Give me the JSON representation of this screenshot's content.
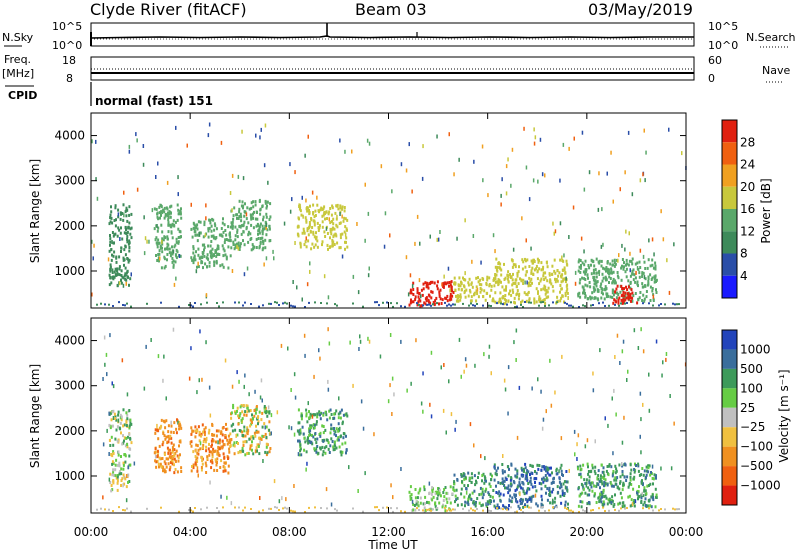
{
  "header": {
    "station": "Clyde River (fitACF)",
    "beam": "Beam 03",
    "date": "03/May/2019"
  },
  "strips": {
    "nsky_label": "N.Sky",
    "nsky_ticks": [
      "10^5",
      "10^0"
    ],
    "nsearch_label": "N.Search",
    "nsearch_ticks": [
      "10^5",
      "10^0"
    ],
    "freq_label_1": "Freq.",
    "freq_label_2": "[MHz]",
    "freq_ticks": [
      "18",
      "8"
    ],
    "nave_label": "Nave",
    "nave_ticks": [
      "60",
      "0"
    ],
    "cpid_label": "CPID",
    "cpid_value": "normal (fast) 151"
  },
  "chart_data": [
    {
      "type": "heatmap",
      "name": "power-panel",
      "ylabel": "Slant Range [km]",
      "xlabel": "Time UT",
      "ylim": [
        180,
        4500
      ],
      "yticks": [
        "1000",
        "2000",
        "3000",
        "4000"
      ],
      "ytick_values": [
        1000,
        2000,
        3000,
        4000
      ],
      "xlim": [
        0,
        24
      ],
      "colorbar": {
        "label": "Power [dB]",
        "tick_labels": [
          "4",
          "8",
          "12",
          "16",
          "20",
          "24",
          "28"
        ],
        "tick_values": [
          4,
          8,
          12,
          16,
          20,
          24,
          28
        ],
        "range": [
          0,
          32
        ],
        "colors": [
          "#1a1aff",
          "#2a4ea8",
          "#3d8a5a",
          "#5aa86a",
          "#c8c83c",
          "#f0a020",
          "#f06010",
          "#e02010"
        ]
      },
      "echo_regions": [
        {
          "t": [
            0.7,
            1.6
          ],
          "r": [
            700,
            2500
          ],
          "value": 10
        },
        {
          "t": [
            2.5,
            3.6
          ],
          "r": [
            1100,
            2500
          ],
          "value": 12
        },
        {
          "t": [
            4.0,
            5.6
          ],
          "r": [
            1100,
            2200
          ],
          "value": 14
        },
        {
          "t": [
            5.6,
            7.2
          ],
          "r": [
            1500,
            2600
          ],
          "value": 14
        },
        {
          "t": [
            8.3,
            10.3
          ],
          "r": [
            1500,
            2500
          ],
          "value": 16
        },
        {
          "t": [
            12.8,
            14.6
          ],
          "r": [
            250,
            800
          ],
          "value": 28
        },
        {
          "t": [
            14.6,
            16.2
          ],
          "r": [
            350,
            900
          ],
          "value": 18
        },
        {
          "t": [
            16.2,
            19.2
          ],
          "r": [
            300,
            1300
          ],
          "value": 16
        },
        {
          "t": [
            19.6,
            22.8
          ],
          "r": [
            350,
            1300
          ],
          "value": 14
        },
        {
          "t": [
            21.0,
            22.0
          ],
          "r": [
            300,
            700
          ],
          "value": 28
        }
      ]
    },
    {
      "type": "heatmap",
      "name": "velocity-panel",
      "ylabel": "Slant Range [km]",
      "xlabel": "Time UT",
      "ylim": [
        180,
        4500
      ],
      "yticks": [
        "1000",
        "2000",
        "3000",
        "4000"
      ],
      "ytick_values": [
        1000,
        2000,
        3000,
        4000
      ],
      "xlim": [
        0,
        24
      ],
      "xticks": [
        "00:00",
        "04:00",
        "08:00",
        "12:00",
        "16:00",
        "20:00",
        "00:00"
      ],
      "xtick_values": [
        0,
        4,
        8,
        12,
        16,
        20,
        24
      ],
      "colorbar": {
        "label": "Velocity [m s⁻¹]",
        "tick_labels": [
          "1000",
          "500",
          "100",
          "25",
          "−25",
          "−100",
          "−500",
          "−1000"
        ],
        "colors": [
          "#2244bb",
          "#3a6e9c",
          "#3d9a5a",
          "#66cc44",
          "#c0c0c0",
          "#f0c040",
          "#f09020",
          "#f06010",
          "#e02010"
        ]
      },
      "echo_regions": [
        {
          "t": [
            0.7,
            1.6
          ],
          "r": [
            700,
            2500
          ],
          "value": "-25 to 100"
        },
        {
          "t": [
            2.5,
            3.6
          ],
          "r": [
            1100,
            2300
          ],
          "value": "-500 to -100"
        },
        {
          "t": [
            4.0,
            5.6
          ],
          "r": [
            1100,
            2200
          ],
          "value": "-500 to -100"
        },
        {
          "t": [
            5.6,
            7.2
          ],
          "r": [
            1500,
            2600
          ],
          "value": "-100 to 100"
        },
        {
          "t": [
            8.3,
            10.3
          ],
          "r": [
            1500,
            2500
          ],
          "value": "100 to 500"
        },
        {
          "t": [
            12.8,
            14.6
          ],
          "r": [
            250,
            800
          ],
          "value": "25 to 100"
        },
        {
          "t": [
            14.6,
            16.2
          ],
          "r": [
            350,
            1100
          ],
          "value": "100 to 500"
        },
        {
          "t": [
            16.2,
            19.2
          ],
          "r": [
            300,
            1300
          ],
          "value": "100 to 1000"
        },
        {
          "t": [
            19.6,
            22.8
          ],
          "r": [
            350,
            1300
          ],
          "value": "100 to 500"
        }
      ]
    }
  ]
}
